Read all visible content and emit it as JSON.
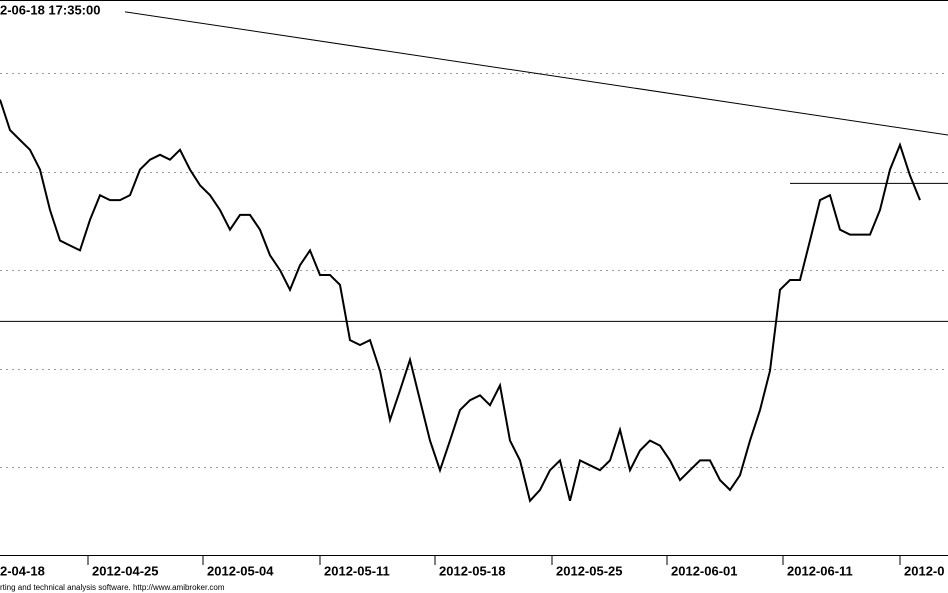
{
  "chart_data": {
    "type": "line",
    "title": "2-06-18 17:35:00",
    "footer": "rting and technical analysis software. http://www.amibroker.com",
    "color": "#000000",
    "values": [
      4.73,
      4.42,
      4.32,
      4.22,
      4.02,
      3.61,
      3.3,
      3.25,
      3.2,
      3.51,
      3.76,
      3.71,
      3.71,
      3.76,
      4.02,
      4.12,
      4.17,
      4.12,
      4.22,
      4.02,
      3.86,
      3.76,
      3.61,
      3.41,
      3.56,
      3.56,
      3.41,
      3.15,
      3.0,
      2.8,
      3.05,
      3.2,
      2.95,
      2.95,
      2.85,
      2.29,
      2.24,
      2.29,
      1.98,
      1.48,
      1.78,
      2.09,
      1.68,
      1.27,
      0.97,
      1.27,
      1.58,
      1.68,
      1.73,
      1.63,
      1.83,
      1.27,
      1.07,
      0.66,
      0.77,
      0.97,
      1.07,
      0.66,
      1.07,
      1.02,
      0.97,
      1.07,
      1.38,
      0.97,
      1.17,
      1.27,
      1.22,
      1.07,
      0.87,
      0.97,
      1.07,
      1.07,
      0.87,
      0.77,
      0.92,
      1.27,
      1.58,
      1.98,
      2.8,
      2.9,
      2.9,
      3.3,
      3.71,
      3.76,
      3.41,
      3.36,
      3.36,
      3.36,
      3.61,
      4.02,
      4.27,
      3.96,
      3.71
    ],
    "xlim": [
      0,
      94.8
    ],
    "xticks": [
      {
        "value": -0.4,
        "label": "2-04-18"
      },
      {
        "value": 8.8,
        "label": "2012-04-25"
      },
      {
        "value": 20.3,
        "label": "2012-05-04"
      },
      {
        "value": 32,
        "label": "2012-05-11"
      },
      {
        "value": 43.5,
        "label": "2012-05-18"
      },
      {
        "value": 55.2,
        "label": "2012-05-25"
      },
      {
        "value": 66.7,
        "label": "2012-06-01"
      },
      {
        "value": 78.3,
        "label": "2012-06-11"
      },
      {
        "value": 90,
        "label": "2012-0"
      }
    ],
    "ylim": [
      0.11,
      5.74
    ],
    "yticks": [
      1,
      2,
      3,
      4,
      5
    ],
    "grid": true,
    "trendlines": [
      {
        "x": [
          12.5,
          94.8
        ],
        "y": [
          5.62,
          4.37
        ]
      },
      {
        "x": [
          0,
          94.8
        ],
        "y": [
          2.48,
          2.48
        ]
      },
      {
        "x": [
          79,
          94.8
        ],
        "y": [
          3.88,
          3.88
        ]
      }
    ]
  }
}
